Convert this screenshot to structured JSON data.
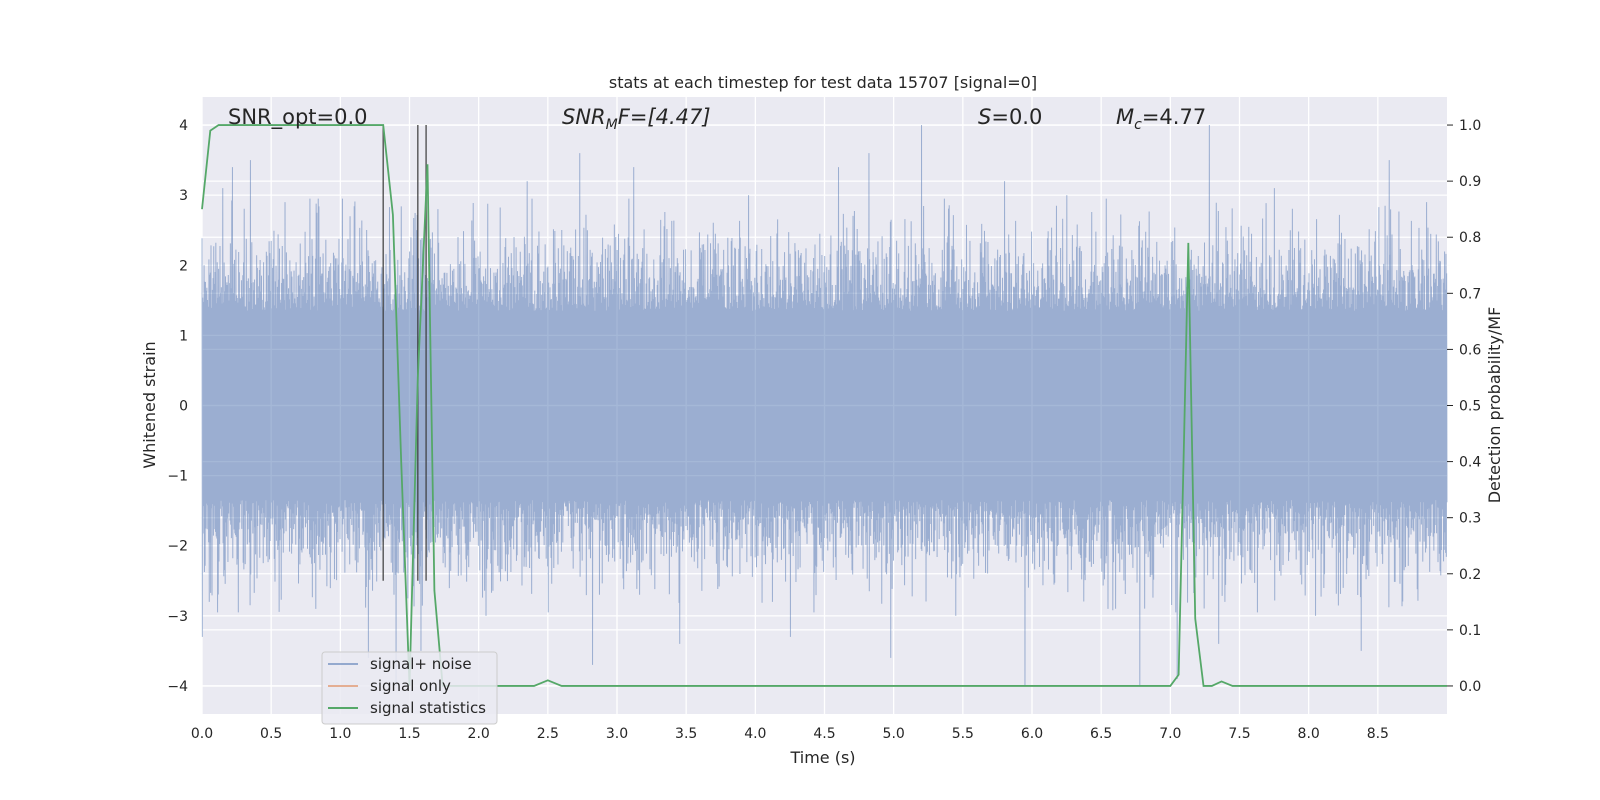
{
  "chart_data": {
    "type": "line",
    "title": "stats at each timestep for test data 15707 [signal=0]",
    "xlabel": "Time (s)",
    "ylabel_left": "Whitened strain",
    "ylabel_right": "Detection probability/MF",
    "xlim": [
      0.0,
      9.0
    ],
    "ylim_left": [
      -4.4,
      4.4
    ],
    "ylim_right": [
      -0.05,
      1.05
    ],
    "xticks": [
      0.0,
      0.5,
      1.0,
      1.5,
      2.0,
      2.5,
      3.0,
      3.5,
      4.0,
      4.5,
      5.0,
      5.5,
      6.0,
      6.5,
      7.0,
      7.5,
      8.0,
      8.5
    ],
    "yticks_left": [
      -4,
      -3,
      -2,
      -1,
      0,
      1,
      2,
      3,
      4
    ],
    "yticks_right": [
      0.0,
      0.1,
      0.2,
      0.3,
      0.4,
      0.5,
      0.6,
      0.7,
      0.8,
      0.9,
      1.0
    ],
    "grid": true,
    "legend_position": "lower-left",
    "annotations": {
      "snr_opt": "SNR_opt=0.0",
      "snr_mf_sym": "SNR",
      "snr_mf_sub": "M",
      "snr_mf_rest": "F=[4.47]",
      "s_sym": "S",
      "s_rest": "=0.0",
      "mc_sym": "M",
      "mc_sub": "c",
      "mc_rest": "=4.77"
    },
    "vlines": [
      1.31,
      1.56,
      1.62
    ],
    "series": [
      {
        "name": "signal+ noise",
        "axis": "left",
        "color": "#4c72b0",
        "note_style": "dense whitened noise, approx. range -4 to 4",
        "peaks": [
          {
            "x": 0.0,
            "y": -3.3
          },
          {
            "x": 0.05,
            "y": -2.8
          },
          {
            "x": 0.15,
            "y": 3.1
          },
          {
            "x": 0.22,
            "y": 3.4
          },
          {
            "x": 0.35,
            "y": 3.5
          },
          {
            "x": 0.6,
            "y": 2.9
          },
          {
            "x": 0.82,
            "y": -2.9
          },
          {
            "x": 1.07,
            "y": 2.7
          },
          {
            "x": 1.2,
            "y": -3.6
          },
          {
            "x": 1.4,
            "y": -4.0
          },
          {
            "x": 1.58,
            "y": -3.5
          },
          {
            "x": 2.05,
            "y": -3.0
          },
          {
            "x": 2.35,
            "y": 3.2
          },
          {
            "x": 2.73,
            "y": 3.6
          },
          {
            "x": 2.82,
            "y": -3.7
          },
          {
            "x": 3.12,
            "y": 3.4
          },
          {
            "x": 3.45,
            "y": -3.4
          },
          {
            "x": 3.95,
            "y": 3.0
          },
          {
            "x": 4.25,
            "y": -3.3
          },
          {
            "x": 4.6,
            "y": 3.4
          },
          {
            "x": 4.82,
            "y": 3.6
          },
          {
            "x": 4.98,
            "y": -3.6
          },
          {
            "x": 5.2,
            "y": 4.0
          },
          {
            "x": 5.45,
            "y": -3.0
          },
          {
            "x": 5.8,
            "y": 3.2
          },
          {
            "x": 5.95,
            "y": -4.0
          },
          {
            "x": 6.25,
            "y": 3.0
          },
          {
            "x": 6.55,
            "y": -2.9
          },
          {
            "x": 6.78,
            "y": -4.0
          },
          {
            "x": 7.05,
            "y": -3.9
          },
          {
            "x": 7.28,
            "y": 4.0
          },
          {
            "x": 7.35,
            "y": -3.4
          },
          {
            "x": 7.75,
            "y": 3.1
          },
          {
            "x": 8.05,
            "y": -3.0
          },
          {
            "x": 8.38,
            "y": -3.5
          },
          {
            "x": 8.58,
            "y": 3.5
          },
          {
            "x": 8.85,
            "y": 2.9
          }
        ]
      },
      {
        "name": "signal only",
        "axis": "left",
        "color": "#dd8452",
        "points": []
      },
      {
        "name": "signal statistics",
        "axis": "right",
        "color": "#55a868",
        "x": [
          0.0,
          0.06,
          0.12,
          1.31,
          1.38,
          1.44,
          1.5,
          1.56,
          1.63,
          1.68,
          1.74,
          1.8,
          2.4,
          2.5,
          2.6,
          6.95,
          7.0,
          7.06,
          7.1,
          7.13,
          7.18,
          7.24,
          7.3,
          7.37,
          7.45,
          7.55,
          9.0
        ],
        "y": [
          0.85,
          0.99,
          1.0,
          1.0,
          0.84,
          0.4,
          0.0,
          0.55,
          0.93,
          0.17,
          0.0,
          0.0,
          0.0,
          0.01,
          0.0,
          0.0,
          0.0,
          0.02,
          0.45,
          0.79,
          0.12,
          0.0,
          0.0,
          0.008,
          0.0,
          0.0,
          0.0
        ]
      }
    ]
  }
}
